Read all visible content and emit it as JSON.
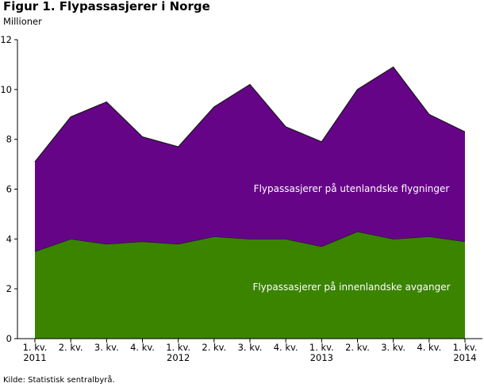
{
  "chart_data": {
    "type": "area",
    "stacked": true,
    "title": "Figur 1. Flypassasjerer i Norge",
    "ylabel": "Millioner",
    "xlabel": "",
    "ylim": [
      0,
      12
    ],
    "y_ticks": [
      "0",
      "2",
      "4",
      "6",
      "8",
      "10",
      "12"
    ],
    "grid": false,
    "categories": [
      [
        "1. kv.",
        "2011"
      ],
      [
        "2. kv.",
        ""
      ],
      [
        "3. kv.",
        ""
      ],
      [
        "4. kv.",
        ""
      ],
      [
        "1. kv.",
        "2012"
      ],
      [
        "2. kv.",
        ""
      ],
      [
        "3. kv.",
        ""
      ],
      [
        "4. kv.",
        ""
      ],
      [
        "1. kv.",
        "2013"
      ],
      [
        "2. kv.",
        ""
      ],
      [
        "3. kv.",
        ""
      ],
      [
        "4. kv.",
        ""
      ],
      [
        "1. kv.",
        "2014"
      ]
    ],
    "series": [
      {
        "name": "Flypassasjerer på innenlandske avganger",
        "color": "#3a8400",
        "values": [
          3.5,
          4.0,
          3.8,
          3.9,
          3.8,
          4.1,
          4.0,
          4.0,
          3.7,
          4.3,
          4.0,
          4.1,
          3.9
        ]
      },
      {
        "name": "Flypassasjerer på utenlandske flygninger",
        "color": "#660488",
        "values": [
          3.6,
          4.9,
          5.7,
          4.2,
          3.9,
          5.2,
          6.2,
          4.5,
          4.2,
          5.7,
          6.9,
          4.9,
          4.4
        ]
      }
    ],
    "totals": [
      7.1,
      8.9,
      9.5,
      8.1,
      7.7,
      9.3,
      10.2,
      8.5,
      7.9,
      10.0,
      10.9,
      9.0,
      8.3
    ]
  },
  "source": "Kilde: Statistisk sentralbyrå."
}
